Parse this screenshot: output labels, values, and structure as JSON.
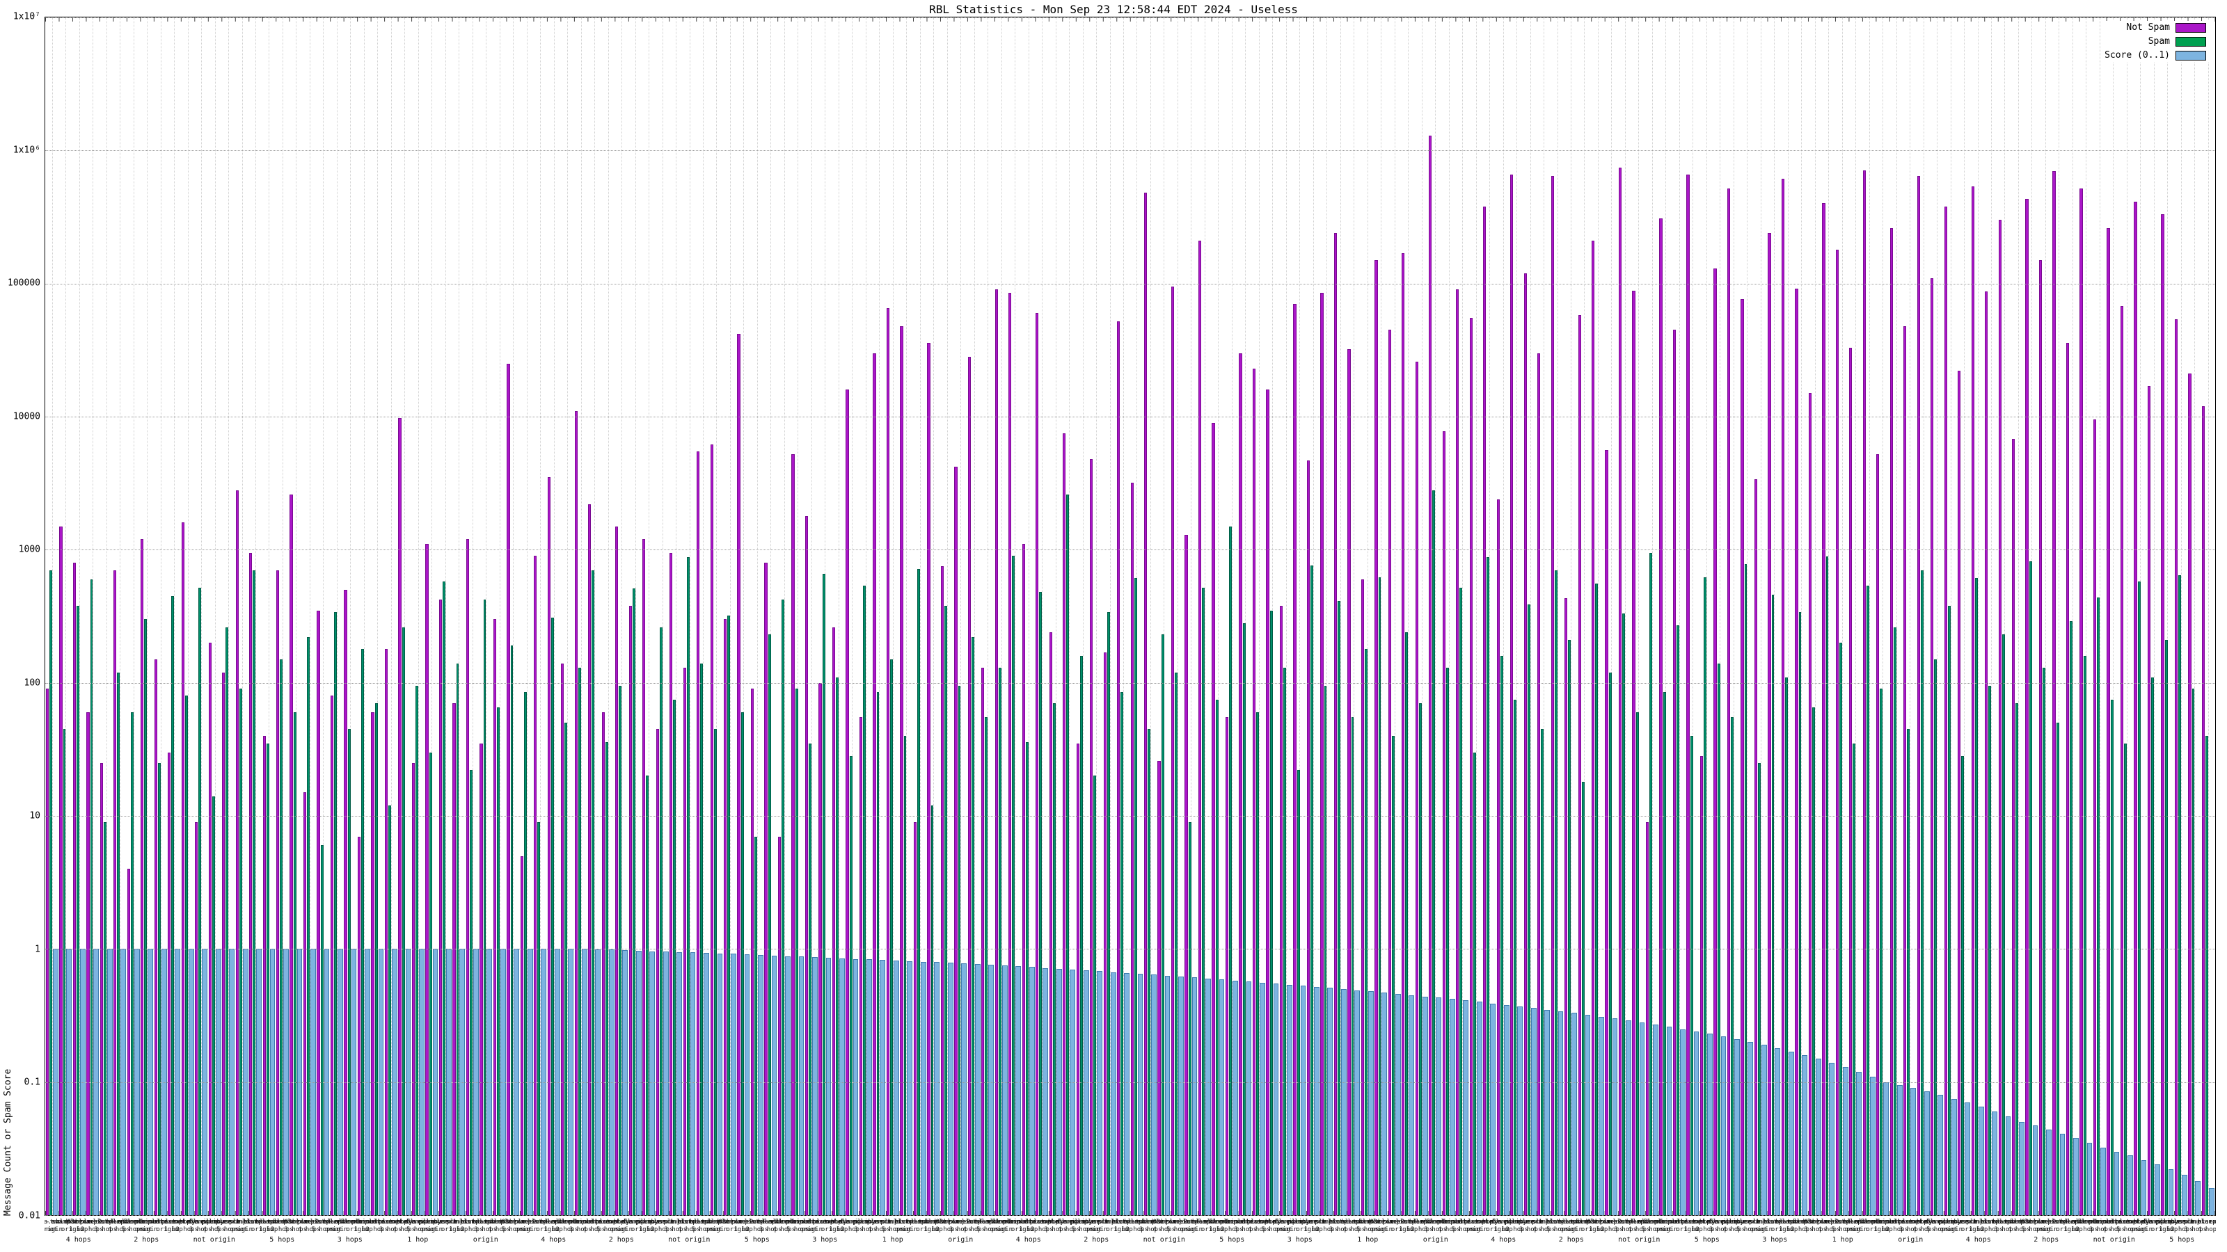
{
  "chart_data": {
    "type": "bar",
    "title": "RBL Statistics - Mon Sep 23 12:58:44 EDT 2024 - Useless",
    "ylabel": "Message Count or Spam Score",
    "xlabel": "",
    "log_scale_y": true,
    "ylim": [
      0.01,
      10000000
    ],
    "y_ticks": [
      "1x10⁷",
      "1x10⁶",
      "100000",
      "10000",
      "1000",
      "100",
      "10",
      "1",
      "0.1",
      "0.01"
    ],
    "grid": true,
    "legend_position": "top-right",
    "legend": [
      {
        "label": "Not Spam",
        "color": "#aa16c8"
      },
      {
        "label": "Spam",
        "color": "#00a050"
      },
      {
        "label": "Score (0..1)",
        "color": "#7db4e0"
      }
    ],
    "x_label_pool": [
      "list-a.example",
      "bl-two.example",
      "rbl-03.example",
      "dnsbl-x.example",
      "zone-9.example",
      "list-k.example",
      "bl-old.example",
      "rbl-z1.example",
      "combined.example",
      "multi.example",
      "host-b.example",
      "net-bl.example",
      "dyn-ip.example",
      "policy.example",
      "abuse-1.example",
      "srn-bl.example"
    ],
    "hop_label_pool": [
      "origin",
      "not origin",
      "1 hop",
      "2 hops",
      "3 hops",
      "4 hops",
      "5 hops"
    ],
    "series": {
      "not_spam": [
        90,
        1500,
        800,
        60,
        25,
        700,
        4,
        1200,
        150,
        30,
        1600,
        9,
        200,
        120,
        2800,
        950,
        40,
        700,
        2600,
        15,
        350,
        80,
        500,
        7,
        60,
        180,
        9800,
        25,
        1100,
        420,
        70,
        1200,
        35,
        300,
        25000,
        5,
        900,
        3500,
        140,
        11000,
        2200,
        60,
        1500,
        380,
        1200,
        45,
        950,
        130,
        5500,
        6200,
        300,
        42000,
        90,
        800,
        7,
        5200,
        1800,
        100,
        260,
        16000,
        55,
        30000,
        65000,
        48000,
        9,
        36000,
        750,
        4200,
        28000,
        130,
        90000,
        85000,
        1100,
        60000,
        240,
        7500,
        35,
        4800,
        170,
        52000,
        3200,
        480000,
        26,
        95000,
        1300,
        210000,
        9000,
        55,
        30000,
        23000,
        16000,
        380,
        70000,
        4700,
        85000,
        240000,
        32000,
        600,
        150000,
        45000,
        170000,
        26000,
        1300000,
        7800,
        90000,
        55000,
        380000,
        2400,
        660000,
        120000,
        30000,
        640000,
        430,
        58000,
        210000,
        5600,
        740000,
        88000,
        9,
        310000,
        45000,
        660000,
        28,
        130000,
        520000,
        76000,
        3400,
        240000,
        610000,
        92000,
        15000,
        400000,
        180000,
        33000,
        710000,
        5200,
        260000,
        48000,
        640000,
        110000,
        380000,
        22000,
        540000,
        87000,
        300000,
        6800,
        430000,
        150000,
        700000,
        36000,
        520000,
        9500,
        260000,
        68000,
        410000,
        17000,
        330000,
        54000,
        21000,
        12000
      ],
      "spam": [
        700,
        45,
        380,
        600,
        9,
        120,
        60,
        300,
        25,
        450,
        80,
        520,
        14,
        260,
        90,
        700,
        35,
        150,
        60,
        220,
        6,
        340,
        45,
        180,
        70,
        12,
        260,
        95,
        30,
        580,
        140,
        22,
        420,
        65,
        190,
        85,
        9,
        310,
        50,
        130,
        700,
        36,
        95,
        510,
        20,
        260,
        75,
        880,
        140,
        45,
        320,
        60,
        7,
        230,
        420,
        90,
        35,
        660,
        110,
        28,
        540,
        85,
        150,
        40,
        720,
        12,
        380,
        95,
        220,
        55,
        130,
        900,
        36,
        480,
        70,
        2600,
        160,
        20,
        340,
        85,
        610,
        45,
        230,
        120,
        9,
        520,
        75,
        1500,
        280,
        60,
        350,
        130,
        22,
        760,
        95,
        410,
        55,
        180,
        620,
        40,
        240,
        70,
        2800,
        130,
        520,
        30,
        880,
        160,
        75,
        390,
        45,
        700,
        210,
        18,
        560,
        120,
        330,
        60,
        950,
        85,
        270,
        40,
        620,
        140,
        55,
        780,
        25,
        460,
        110,
        340,
        65,
        890,
        200,
        35,
        540,
        90,
        260,
        45,
        700,
        150,
        380,
        28,
        610,
        95,
        230,
        70,
        820,
        130,
        50,
        290,
        160,
        440,
        75,
        35,
        580,
        110,
        210,
        640,
        90,
        40
      ],
      "score": [
        1,
        1,
        1,
        1,
        1,
        1,
        1,
        1,
        1,
        1,
        1,
        1,
        1,
        1,
        1,
        1,
        1,
        1,
        1,
        1,
        1,
        1,
        1,
        1,
        1,
        1,
        1,
        1,
        1,
        1,
        1,
        1,
        1,
        1,
        1,
        1,
        1,
        1,
        1,
        1,
        0.99,
        0.99,
        0.98,
        0.97,
        0.96,
        0.96,
        0.95,
        0.94,
        0.93,
        0.92,
        0.92,
        0.91,
        0.9,
        0.89,
        0.88,
        0.88,
        0.87,
        0.86,
        0.85,
        0.84,
        0.84,
        0.83,
        0.82,
        0.81,
        0.8,
        0.8,
        0.79,
        0.78,
        0.77,
        0.76,
        0.75,
        0.74,
        0.73,
        0.72,
        0.71,
        0.7,
        0.69,
        0.68,
        0.67,
        0.66,
        0.65,
        0.64,
        0.63,
        0.62,
        0.61,
        0.6,
        0.59,
        0.58,
        0.57,
        0.56,
        0.55,
        0.54,
        0.53,
        0.52,
        0.51,
        0.5,
        0.49,
        0.48,
        0.47,
        0.46,
        0.45,
        0.44,
        0.43,
        0.42,
        0.41,
        0.4,
        0.39,
        0.38,
        0.37,
        0.36,
        0.35,
        0.34,
        0.33,
        0.32,
        0.31,
        0.3,
        0.29,
        0.28,
        0.27,
        0.26,
        0.25,
        0.24,
        0.23,
        0.22,
        0.21,
        0.2,
        0.19,
        0.18,
        0.17,
        0.16,
        0.15,
        0.14,
        0.13,
        0.12,
        0.11,
        0.1,
        0.095,
        0.09,
        0.085,
        0.08,
        0.075,
        0.07,
        0.065,
        0.06,
        0.055,
        0.05,
        0.047,
        0.044,
        0.041,
        0.038,
        0.035,
        0.032,
        0.03,
        0.028,
        0.026,
        0.024,
        0.022,
        0.02,
        0.018,
        0.016
      ]
    }
  }
}
